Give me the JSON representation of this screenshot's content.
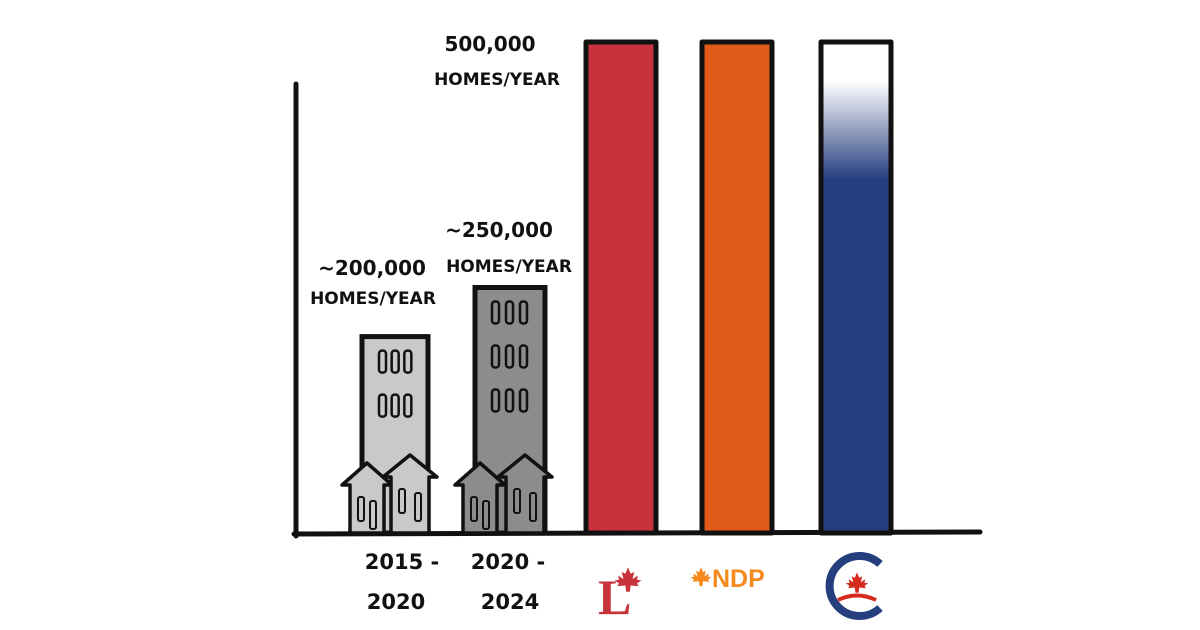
{
  "chart_data": {
    "type": "bar",
    "title": "",
    "xlabel": "",
    "ylabel": "",
    "ylim": [
      0,
      500000
    ],
    "grid": false,
    "legend": "none",
    "categories": [
      "2015 - 2020",
      "2020 - 2024",
      "Liberal",
      "NDP",
      "Conservative"
    ],
    "tick_labels": [
      [
        "2015 -",
        "2020"
      ],
      [
        "2020 -",
        "2024"
      ],
      "L",
      "NDP",
      "C"
    ],
    "values": [
      200000,
      250000,
      500000,
      500000,
      500000
    ],
    "annotations": [
      {
        "category": "2015 - 2020",
        "lines": [
          "~200,000",
          "HOMES/YEAR"
        ]
      },
      {
        "category": "2020 - 2024",
        "lines": [
          "~250,000",
          "HOMES/YEAR"
        ]
      },
      {
        "category": "Liberal",
        "lines": [
          "500,000",
          "HOMES/YEAR"
        ]
      }
    ],
    "colors": {
      "liberal": "#c8323a",
      "ndp": "#e05a1a",
      "ndp_logo": "#f58a1f",
      "conservative": "#253e7e",
      "conservative_top": "#ffffff",
      "building_light": "#c9c9c9",
      "building_dark": "#8c8c8c",
      "axis": "#111111"
    },
    "icons": [
      "building-light-icon",
      "building-dark-icon",
      "liberal-logo-icon",
      "ndp-logo-icon",
      "conservative-logo-icon",
      "maple-leaf-icon"
    ]
  }
}
